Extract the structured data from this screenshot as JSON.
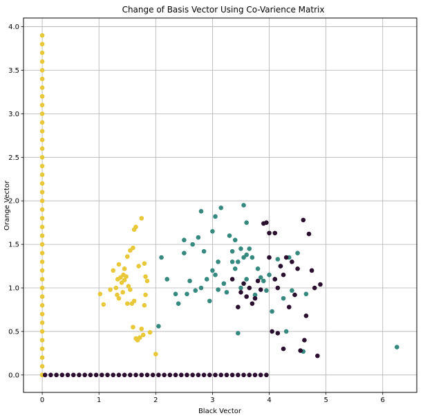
{
  "chart_data": {
    "type": "scatter",
    "title": "Change of Basis Vector Using Co-Varience Matrix",
    "xlabel": "Black Vector",
    "ylabel": "Orange Vector",
    "xlim": [
      -0.33,
      6.6
    ],
    "ylim": [
      -0.2,
      4.1
    ],
    "xticks": [
      0,
      1,
      2,
      3,
      4,
      5,
      6
    ],
    "xtick_labels": [
      "0",
      "1",
      "2",
      "3",
      "4",
      "5",
      "6"
    ],
    "yticks": [
      0.0,
      0.5,
      1.0,
      1.5,
      2.0,
      2.5,
      3.0,
      3.5,
      4.0
    ],
    "ytick_labels": [
      "0.0",
      "0.5",
      "1.0",
      "1.5",
      "2.0",
      "2.5",
      "3.0",
      "3.5",
      "4.0"
    ],
    "grid": true,
    "series": [
      {
        "color": "#e8c838",
        "x": [
          0,
          0,
          0,
          0,
          0,
          0,
          0,
          0,
          0,
          0,
          0,
          0,
          0,
          0,
          0,
          0,
          0,
          0,
          0,
          0,
          0,
          0,
          0,
          0,
          0,
          0,
          0,
          0,
          0,
          0,
          0,
          0,
          0,
          0,
          0,
          0,
          0,
          0,
          0,
          0,
          0,
          1.02,
          1.08,
          1.2,
          1.25,
          1.3,
          1.32,
          1.33,
          1.35,
          1.35,
          1.38,
          1.4,
          1.42,
          1.43,
          1.45,
          1.45,
          1.48,
          1.5,
          1.5,
          1.52,
          1.55,
          1.55,
          1.58,
          1.6,
          1.6,
          1.62,
          1.62,
          1.65,
          1.65,
          1.68,
          1.7,
          1.72,
          1.75,
          1.75,
          1.78,
          1.8,
          1.8,
          1.82,
          1.82,
          1.85,
          1.9,
          2.0
        ],
        "y": [
          0,
          0.1,
          0.2,
          0.3,
          0.4,
          0.5,
          0.6,
          0.7,
          0.8,
          0.9,
          1.0,
          1.1,
          1.2,
          1.3,
          1.4,
          1.5,
          1.6,
          1.7,
          1.8,
          1.9,
          2.0,
          2.1,
          2.2,
          2.3,
          2.4,
          2.5,
          2.6,
          2.7,
          2.8,
          2.9,
          3.0,
          3.1,
          3.2,
          3.3,
          3.4,
          3.5,
          3.6,
          3.7,
          3.8,
          3.9,
          0.0,
          0.93,
          0.81,
          0.98,
          1.2,
          1.0,
          0.92,
          1.1,
          1.27,
          0.88,
          1.12,
          1.06,
          0.95,
          1.15,
          1.22,
          1.09,
          1.13,
          0.82,
          1.36,
          1.02,
          0.98,
          1.43,
          0.82,
          0.55,
          1.46,
          0.85,
          1.67,
          1.7,
          0.42,
          0.4,
          1.25,
          0.43,
          1.8,
          0.53,
          0.46,
          1.28,
          0.8,
          0.92,
          1.13,
          1.08,
          0.49,
          0.24
        ]
      },
      {
        "color": "#35897f",
        "x": [
          2.05,
          2.1,
          2.2,
          2.35,
          2.4,
          2.5,
          2.5,
          2.55,
          2.6,
          2.65,
          2.7,
          2.75,
          2.8,
          2.8,
          2.85,
          2.9,
          2.95,
          3.0,
          3.0,
          3.05,
          3.05,
          3.1,
          3.1,
          3.15,
          3.2,
          3.25,
          3.3,
          3.35,
          3.35,
          3.4,
          3.4,
          3.45,
          3.45,
          3.5,
          3.5,
          3.55,
          3.55,
          3.6,
          3.6,
          3.6,
          3.65,
          3.7,
          3.75,
          3.8,
          3.85,
          3.9,
          3.95,
          4.0,
          4.05,
          4.1,
          4.15,
          4.2,
          4.25,
          4.3,
          4.35,
          4.4,
          4.5,
          4.6,
          4.65,
          6.25
        ],
        "y": [
          0.56,
          1.35,
          1.1,
          0.93,
          0.82,
          1.55,
          1.4,
          0.93,
          1.08,
          1.5,
          0.97,
          1.58,
          1.88,
          1.0,
          1.42,
          1.1,
          0.85,
          1.2,
          1.65,
          1.82,
          1.15,
          1.3,
          0.98,
          1.92,
          1.05,
          0.95,
          1.6,
          1.3,
          1.42,
          1.22,
          1.55,
          0.48,
          1.3,
          1.0,
          1.45,
          1.35,
          1.95,
          1.1,
          1.38,
          1.75,
          1.45,
          1.35,
          0.92,
          1.22,
          1.12,
          1.08,
          0.97,
          1.15,
          0.73,
          1.1,
          1.33,
          1.25,
          0.88,
          0.5,
          1.35,
          0.97,
          1.4,
          0.27,
          0.93,
          0.32
        ]
      },
      {
        "color": "#2a0f2f",
        "x": [
          0.05,
          0.15,
          0.25,
          0.35,
          0.45,
          0.55,
          0.65,
          0.75,
          0.85,
          0.95,
          1.05,
          1.15,
          1.25,
          1.35,
          1.45,
          1.55,
          1.65,
          1.75,
          1.85,
          1.95,
          2.05,
          2.15,
          2.25,
          2.35,
          2.45,
          2.55,
          2.65,
          2.75,
          2.85,
          2.95,
          3.05,
          3.15,
          3.25,
          3.35,
          3.45,
          3.55,
          3.65,
          3.75,
          3.85,
          3.95,
          3.35,
          3.45,
          3.5,
          3.55,
          3.6,
          3.65,
          3.7,
          3.75,
          3.8,
          3.85,
          3.9,
          3.95,
          4.0,
          4.0,
          4.05,
          4.1,
          4.1,
          4.15,
          4.15,
          4.2,
          4.25,
          4.25,
          4.3,
          4.35,
          4.4,
          4.45,
          4.5,
          4.55,
          4.6,
          4.62,
          4.65,
          4.7,
          4.75,
          4.8,
          4.85,
          4.9
        ],
        "y": [
          0,
          0,
          0,
          0,
          0,
          0,
          0,
          0,
          0,
          0,
          0,
          0,
          0,
          0,
          0,
          0,
          0,
          0,
          0,
          0,
          0,
          0,
          0,
          0,
          0,
          0,
          0,
          0,
          0,
          0,
          0,
          0,
          0,
          0,
          0,
          0,
          0,
          0,
          0,
          0,
          1.1,
          0.78,
          0.95,
          1.05,
          0.9,
          1.0,
          0.82,
          0.88,
          1.08,
          0.98,
          1.74,
          1.75,
          1.63,
          1.35,
          0.5,
          1.1,
          1.63,
          1.0,
          0.48,
          1.25,
          1.15,
          0.3,
          1.35,
          0.78,
          1.3,
          0.92,
          1.22,
          0.28,
          1.78,
          0.4,
          0.68,
          1.62,
          1.2,
          1.0,
          0.22,
          1.04
        ]
      }
    ]
  }
}
